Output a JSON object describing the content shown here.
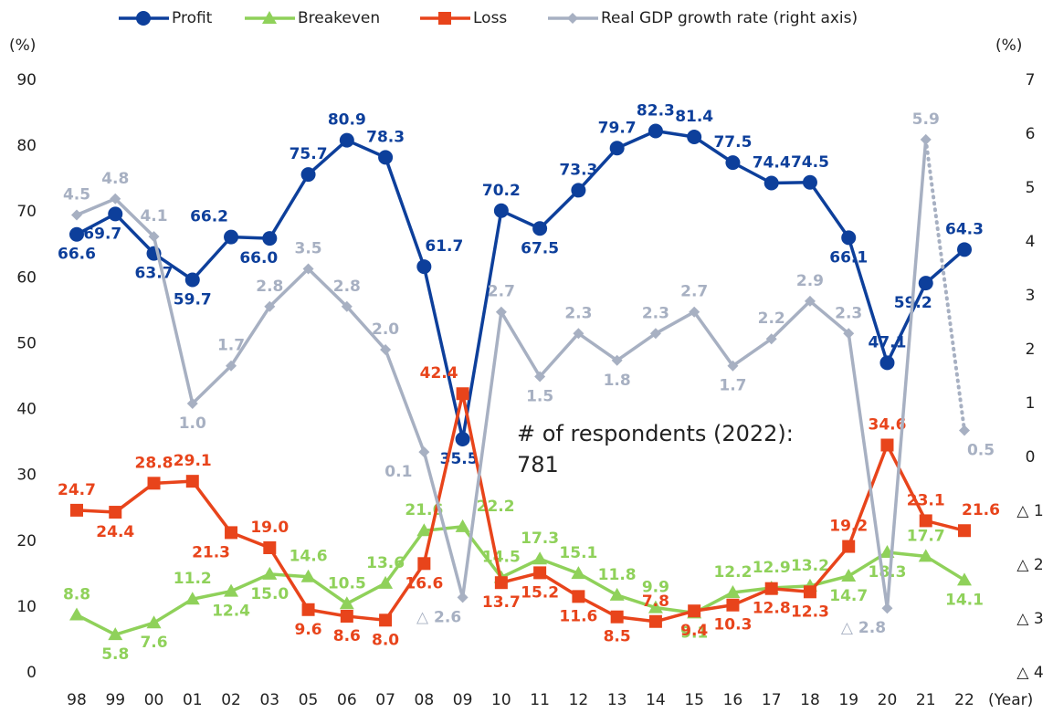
{
  "chart_data": {
    "type": "line",
    "categories": [
      "98",
      "99",
      "00",
      "01",
      "02",
      "03",
      "05",
      "06",
      "07",
      "08",
      "09",
      "10",
      "11",
      "12",
      "13",
      "14",
      "15",
      "16",
      "17",
      "18",
      "19",
      "20",
      "21",
      "22"
    ],
    "x_label": "(Year)",
    "y_label": "(%)",
    "y2_label": "(%)",
    "annotation": [
      "# of respondents (2022):",
      "781"
    ],
    "ylim": [
      0,
      90
    ],
    "yticks": [
      0,
      10,
      20,
      30,
      40,
      50,
      60,
      70,
      80,
      90
    ],
    "y2lim": [
      -4,
      7
    ],
    "y2ticks": [
      {
        "value": -4,
        "label": "△ 4"
      },
      {
        "value": -3,
        "label": "△ 3"
      },
      {
        "value": -2,
        "label": "△ 2"
      },
      {
        "value": -1,
        "label": "△ 1"
      },
      0,
      1,
      2,
      3,
      4,
      5,
      6,
      7
    ],
    "grid": false,
    "legend": "top",
    "series": [
      {
        "name": "Profit",
        "color": "#0d3f9b",
        "marker": "circle",
        "values": [
          66.6,
          69.7,
          63.7,
          59.7,
          66.2,
          66.0,
          75.7,
          80.9,
          78.3,
          61.7,
          35.5,
          70.2,
          67.5,
          73.3,
          79.7,
          82.3,
          81.4,
          77.5,
          74.4,
          74.5,
          66.1,
          47.1,
          59.2,
          64.3
        ],
        "value_labels": [
          "66.6",
          "69.7",
          "63.7",
          "59.7",
          "66.2",
          "66.0",
          "75.7",
          "80.9",
          "78.3",
          "61.7",
          "35.5",
          "70.2",
          "67.5",
          "73.3",
          "79.7",
          "82.3",
          "81.4",
          "77.5",
          "74.4",
          "74.5",
          "66.1",
          "47.1",
          "59.2",
          "64.3"
        ]
      },
      {
        "name": "Breakeven",
        "color": "#8fd15a",
        "marker": "triangle",
        "values": [
          8.8,
          5.8,
          7.6,
          11.2,
          12.4,
          15.0,
          14.6,
          10.5,
          13.6,
          21.6,
          22.2,
          14.5,
          17.3,
          15.1,
          11.8,
          9.9,
          9.1,
          12.2,
          12.9,
          13.2,
          14.7,
          18.3,
          17.7,
          14.1
        ],
        "value_labels": [
          "8.8",
          "5.8",
          "7.6",
          "11.2",
          "12.4",
          "15.0",
          "14.6",
          "10.5",
          "13.6",
          "21.6",
          "22.2",
          "14.5",
          "17.3",
          "15.1",
          "11.8",
          "9.9",
          "9.1",
          "12.2",
          "12.9",
          "13.2",
          "14.7",
          "18.3",
          "17.7",
          "14.1"
        ]
      },
      {
        "name": "Loss",
        "color": "#e8441b",
        "marker": "square",
        "values": [
          24.7,
          24.4,
          28.8,
          29.1,
          21.3,
          19.0,
          9.6,
          8.6,
          8.0,
          16.6,
          42.4,
          13.7,
          15.2,
          11.6,
          8.5,
          7.8,
          9.4,
          10.3,
          12.8,
          12.3,
          19.2,
          34.6,
          23.1,
          21.6
        ],
        "value_labels": [
          "24.7",
          "24.4",
          "28.8",
          "29.1",
          "21.3",
          "19.0",
          "9.6",
          "8.6",
          "8.0",
          "16.6",
          "42.4",
          "13.7",
          "15.2",
          "11.6",
          "8.5",
          "7.8",
          "9.4",
          "10.3",
          "12.8",
          "12.3",
          "19.2",
          "34.6",
          "23.1",
          "21.6"
        ]
      },
      {
        "name": "Real GDP growth rate (right axis)",
        "color": "#a7b0c2",
        "marker": "diamond",
        "axis": "y2",
        "last_segment_style": "dotted",
        "values": [
          4.5,
          4.8,
          4.1,
          1.0,
          1.7,
          2.8,
          3.5,
          2.8,
          2.0,
          0.1,
          -2.6,
          2.7,
          1.5,
          2.3,
          1.8,
          2.3,
          2.7,
          1.7,
          2.2,
          2.9,
          2.3,
          -2.8,
          5.9,
          0.5
        ],
        "value_labels": [
          "4.5",
          "4.8",
          "4.1",
          "1.0",
          "1.7",
          "2.8",
          "3.5",
          "2.8",
          "2.0",
          "0.1",
          "△ 2.6",
          "2.7",
          "1.5",
          "2.3",
          "1.8",
          "2.3",
          "2.7",
          "1.7",
          "2.2",
          "2.9",
          "2.3",
          "△ 2.8",
          "5.9",
          "0.5"
        ]
      }
    ]
  }
}
